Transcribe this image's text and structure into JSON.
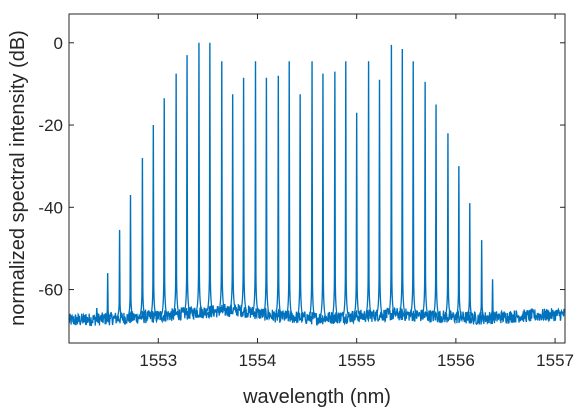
{
  "chart_data": {
    "type": "line",
    "title": "",
    "xlabel": "wavelength (nm)",
    "ylabel": "normalized spectral intensity (dB)",
    "xlim": [
      1552.1,
      1557.1
    ],
    "ylim": [
      -73,
      7
    ],
    "xticks": [
      1553,
      1554,
      1555,
      1556,
      1557
    ],
    "yticks": [
      0,
      -20,
      -40,
      -60
    ],
    "xtick_labels": [
      "1553",
      "1554",
      "1555",
      "1556",
      "1557"
    ],
    "ytick_labels": [
      "0",
      "-20",
      "-40",
      "-60"
    ],
    "grid": false,
    "legend": "none",
    "line_color": "#0072BD",
    "baseline": {
      "x": [
        1552.1,
        1552.6,
        1553.0,
        1553.4,
        1553.8,
        1554.2,
        1554.6,
        1555.0,
        1555.4,
        1555.8,
        1556.2,
        1556.6,
        1557.1
      ],
      "y": [
        -67.5,
        -67.0,
        -66.5,
        -65.5,
        -65.0,
        -66.5,
        -67.0,
        -66.5,
        -66.0,
        -66.5,
        -67.0,
        -66.5,
        -66.0
      ]
    },
    "series": [
      {
        "x": [
          1552.27,
          1552.38,
          1552.49,
          1552.61,
          1552.72,
          1552.84,
          1552.95,
          1553.06,
          1553.18,
          1553.29,
          1553.41,
          1553.52,
          1553.64,
          1553.75,
          1553.86,
          1553.98,
          1554.09,
          1554.21,
          1554.32,
          1554.43,
          1554.55,
          1554.66,
          1554.78,
          1554.89,
          1555.0,
          1555.12,
          1555.23,
          1555.35,
          1555.46,
          1555.57,
          1555.69,
          1555.8,
          1555.92,
          1556.03,
          1556.14,
          1556.26,
          1556.37,
          1556.49,
          1556.6,
          1556.71
        ],
        "y": [
          -66.0,
          -64.5,
          -56.0,
          -45.5,
          -37.0,
          -28.0,
          -20.0,
          -13.5,
          -7.5,
          -3.0,
          0.0,
          0.0,
          -4.5,
          -12.5,
          -8.5,
          -4.5,
          -8.5,
          -8.0,
          -4.5,
          -12.5,
          -4.5,
          -7.5,
          -7.0,
          -4.5,
          -17.0,
          -4.5,
          -9.0,
          -0.5,
          -1.5,
          -4.5,
          -9.5,
          -15.0,
          -22.0,
          -30.0,
          -39.0,
          -48.0,
          -57.5,
          -66.0,
          -66.5,
          -66.0
        ]
      }
    ]
  }
}
